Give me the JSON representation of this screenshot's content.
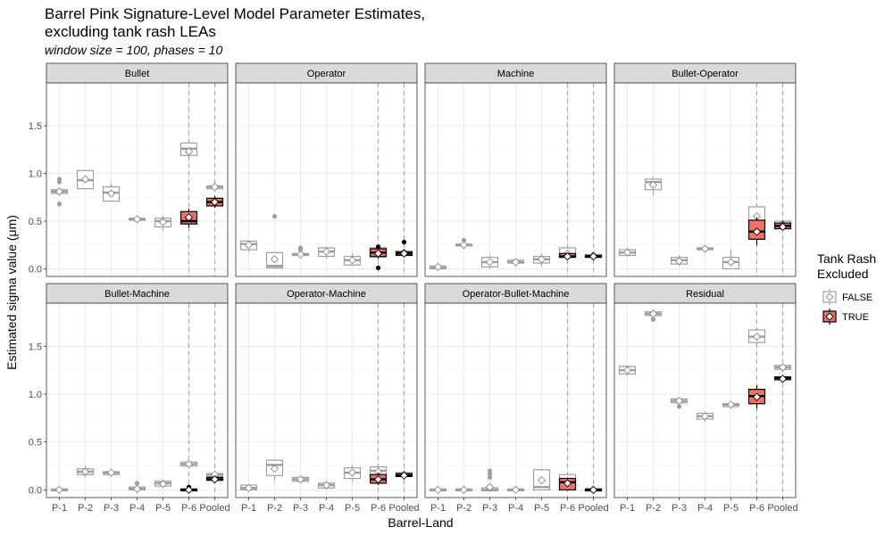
{
  "title_line1": "Barrel Pink Signature-Level Model Parameter Estimates,",
  "title_line2": "excluding tank rash LEAs",
  "subtitle": "window size = 100, phases = 10",
  "legend": {
    "title_line1": "Tank Rash",
    "title_line2": "Excluded",
    "false_label": "FALSE",
    "true_label": "TRUE"
  },
  "colors": {
    "false_box": "#9e9e9e",
    "false_fill": "#ffffff",
    "true_box": "#000000",
    "true_fill": "#f07068",
    "strip_bg": "#d9d9d9",
    "grid": "#ebebeb",
    "vline": "#aaaaaa"
  },
  "chart_data": {
    "type": "box",
    "xlabel": "Barrel-Land",
    "ylabel": "Estimated sigma value (μm)",
    "categories": [
      "P-1",
      "P-2",
      "P-3",
      "P-4",
      "P-5",
      "P-6",
      "Pooled"
    ],
    "ylim": [
      -0.08,
      1.95
    ],
    "yticks": [
      0.0,
      0.5,
      1.0,
      1.5
    ],
    "ytick_labels": [
      "0.0",
      "0.5",
      "1.0",
      "1.5"
    ],
    "dashed_x": [
      "P-6",
      "Pooled"
    ],
    "grid": true,
    "legend_position": "right",
    "panels": [
      {
        "name": "Bullet",
        "boxes": [
          {
            "x": "P-1",
            "excl": false,
            "q1": 0.79,
            "med": 0.81,
            "q3": 0.83,
            "lo": 0.77,
            "hi": 0.85,
            "mean": 0.81,
            "out": [
              0.68,
              0.91,
              0.94
            ]
          },
          {
            "x": "P-2",
            "excl": false,
            "q1": 0.84,
            "med": 0.93,
            "q3": 1.03,
            "lo": 0.84,
            "hi": 1.03,
            "mean": 0.94,
            "out": []
          },
          {
            "x": "P-3",
            "excl": false,
            "q1": 0.71,
            "med": 0.8,
            "q3": 0.86,
            "lo": 0.71,
            "hi": 0.89,
            "mean": 0.79,
            "out": []
          },
          {
            "x": "P-4",
            "excl": false,
            "q1": 0.51,
            "med": 0.52,
            "q3": 0.53,
            "lo": 0.51,
            "hi": 0.53,
            "mean": 0.52,
            "out": []
          },
          {
            "x": "P-5",
            "excl": false,
            "q1": 0.44,
            "med": 0.5,
            "q3": 0.53,
            "lo": 0.4,
            "hi": 0.56,
            "mean": 0.49,
            "out": []
          },
          {
            "x": "P-6",
            "excl": false,
            "q1": 1.19,
            "med": 1.26,
            "q3": 1.32,
            "lo": 1.14,
            "hi": 1.35,
            "mean": 1.23,
            "out": []
          },
          {
            "x": "P-6",
            "excl": true,
            "q1": 0.47,
            "med": 0.5,
            "q3": 0.6,
            "lo": 0.43,
            "hi": 0.63,
            "mean": 0.54,
            "out": []
          },
          {
            "x": "Pooled",
            "excl": false,
            "q1": 0.84,
            "med": 0.86,
            "q3": 0.87,
            "lo": 0.83,
            "hi": 0.88,
            "mean": 0.86,
            "out": []
          },
          {
            "x": "Pooled",
            "excl": true,
            "q1": 0.66,
            "med": 0.7,
            "q3": 0.74,
            "lo": 0.64,
            "hi": 0.76,
            "mean": 0.7,
            "out": []
          }
        ]
      },
      {
        "name": "Operator",
        "boxes": [
          {
            "x": "P-1",
            "excl": false,
            "q1": 0.2,
            "med": 0.26,
            "q3": 0.29,
            "lo": 0.18,
            "hi": 0.3,
            "mean": 0.25,
            "out": []
          },
          {
            "x": "P-2",
            "excl": false,
            "q1": 0.01,
            "med": 0.03,
            "q3": 0.17,
            "lo": 0.0,
            "hi": 0.17,
            "mean": 0.1,
            "out": [
              0.55
            ]
          },
          {
            "x": "P-3",
            "excl": false,
            "q1": 0.14,
            "med": 0.15,
            "q3": 0.16,
            "lo": 0.13,
            "hi": 0.17,
            "mean": 0.15,
            "out": [
              0.2,
              0.22
            ]
          },
          {
            "x": "P-4",
            "excl": false,
            "q1": 0.13,
            "med": 0.18,
            "q3": 0.22,
            "lo": 0.11,
            "hi": 0.23,
            "mean": 0.18,
            "out": []
          },
          {
            "x": "P-5",
            "excl": false,
            "q1": 0.04,
            "med": 0.09,
            "q3": 0.13,
            "lo": 0.03,
            "hi": 0.16,
            "mean": 0.09,
            "out": []
          },
          {
            "x": "P-6",
            "excl": false,
            "q1": 0.12,
            "med": 0.18,
            "q3": 0.22,
            "lo": 0.1,
            "hi": 0.24,
            "mean": 0.18,
            "out": []
          },
          {
            "x": "P-6",
            "excl": true,
            "q1": 0.13,
            "med": 0.17,
            "q3": 0.21,
            "lo": 0.11,
            "hi": 0.22,
            "mean": 0.16,
            "out": [
              0.01,
              0.23
            ]
          },
          {
            "x": "Pooled",
            "excl": false,
            "q1": 0.16,
            "med": 0.17,
            "q3": 0.18,
            "lo": 0.15,
            "hi": 0.19,
            "mean": 0.17,
            "out": []
          },
          {
            "x": "Pooled",
            "excl": true,
            "q1": 0.14,
            "med": 0.16,
            "q3": 0.18,
            "lo": 0.13,
            "hi": 0.19,
            "mean": 0.16,
            "out": [
              0.28
            ]
          }
        ]
      },
      {
        "name": "Machine",
        "boxes": [
          {
            "x": "P-1",
            "excl": false,
            "q1": 0.0,
            "med": 0.01,
            "q3": 0.03,
            "lo": 0.0,
            "hi": 0.04,
            "mean": 0.02,
            "out": []
          },
          {
            "x": "P-2",
            "excl": false,
            "q1": 0.24,
            "med": 0.25,
            "q3": 0.26,
            "lo": 0.23,
            "hi": 0.27,
            "mean": 0.25,
            "out": [
              0.3
            ]
          },
          {
            "x": "P-3",
            "excl": false,
            "q1": 0.02,
            "med": 0.07,
            "q3": 0.12,
            "lo": 0.0,
            "hi": 0.14,
            "mean": 0.07,
            "out": []
          },
          {
            "x": "P-4",
            "excl": false,
            "q1": 0.06,
            "med": 0.07,
            "q3": 0.09,
            "lo": 0.05,
            "hi": 0.1,
            "mean": 0.07,
            "out": []
          },
          {
            "x": "P-5",
            "excl": false,
            "q1": 0.06,
            "med": 0.1,
            "q3": 0.13,
            "lo": 0.03,
            "hi": 0.16,
            "mean": 0.1,
            "out": []
          },
          {
            "x": "P-6",
            "excl": false,
            "q1": 0.12,
            "med": 0.15,
            "q3": 0.22,
            "lo": 0.11,
            "hi": 0.24,
            "mean": 0.16,
            "out": []
          },
          {
            "x": "P-6",
            "excl": true,
            "q1": 0.12,
            "med": 0.13,
            "q3": 0.16,
            "lo": 0.11,
            "hi": 0.17,
            "mean": 0.13,
            "out": []
          },
          {
            "x": "Pooled",
            "excl": false,
            "q1": 0.13,
            "med": 0.14,
            "q3": 0.15,
            "lo": 0.12,
            "hi": 0.16,
            "mean": 0.14,
            "out": []
          },
          {
            "x": "Pooled",
            "excl": true,
            "q1": 0.12,
            "med": 0.13,
            "q3": 0.14,
            "lo": 0.12,
            "hi": 0.15,
            "mean": 0.13,
            "out": []
          }
        ]
      },
      {
        "name": "Bullet-Operator",
        "boxes": [
          {
            "x": "P-1",
            "excl": false,
            "q1": 0.14,
            "med": 0.17,
            "q3": 0.2,
            "lo": 0.13,
            "hi": 0.22,
            "mean": 0.17,
            "out": []
          },
          {
            "x": "P-2",
            "excl": false,
            "q1": 0.83,
            "med": 0.91,
            "q3": 0.94,
            "lo": 0.77,
            "hi": 0.97,
            "mean": 0.88,
            "out": []
          },
          {
            "x": "P-3",
            "excl": false,
            "q1": 0.05,
            "med": 0.09,
            "q3": 0.12,
            "lo": 0.03,
            "hi": 0.14,
            "mean": 0.08,
            "out": []
          },
          {
            "x": "P-4",
            "excl": false,
            "q1": 0.2,
            "med": 0.21,
            "q3": 0.22,
            "lo": 0.19,
            "hi": 0.23,
            "mean": 0.21,
            "out": []
          },
          {
            "x": "P-5",
            "excl": false,
            "q1": 0.0,
            "med": 0.07,
            "q3": 0.12,
            "lo": 0.0,
            "hi": 0.2,
            "mean": 0.07,
            "out": []
          },
          {
            "x": "P-6",
            "excl": false,
            "q1": 0.44,
            "med": 0.5,
            "q3": 0.65,
            "lo": 0.37,
            "hi": 0.68,
            "mean": 0.55,
            "out": []
          },
          {
            "x": "P-6",
            "excl": true,
            "q1": 0.31,
            "med": 0.39,
            "q3": 0.51,
            "lo": 0.25,
            "hi": 0.54,
            "mean": 0.39,
            "out": []
          },
          {
            "x": "Pooled",
            "excl": false,
            "q1": 0.44,
            "med": 0.47,
            "q3": 0.5,
            "lo": 0.42,
            "hi": 0.52,
            "mean": 0.47,
            "out": []
          },
          {
            "x": "Pooled",
            "excl": true,
            "q1": 0.42,
            "med": 0.45,
            "q3": 0.48,
            "lo": 0.41,
            "hi": 0.5,
            "mean": 0.44,
            "out": []
          }
        ]
      },
      {
        "name": "Bullet-Machine",
        "boxes": [
          {
            "x": "P-1",
            "excl": false,
            "q1": -0.01,
            "med": 0.0,
            "q3": 0.01,
            "lo": -0.01,
            "hi": 0.01,
            "mean": 0.0,
            "out": []
          },
          {
            "x": "P-2",
            "excl": false,
            "q1": 0.16,
            "med": 0.19,
            "q3": 0.22,
            "lo": 0.13,
            "hi": 0.25,
            "mean": 0.19,
            "out": []
          },
          {
            "x": "P-3",
            "excl": false,
            "q1": 0.16,
            "med": 0.18,
            "q3": 0.19,
            "lo": 0.15,
            "hi": 0.21,
            "mean": 0.18,
            "out": []
          },
          {
            "x": "P-4",
            "excl": false,
            "q1": 0.0,
            "med": 0.01,
            "q3": 0.03,
            "lo": 0.0,
            "hi": 0.04,
            "mean": 0.01,
            "out": [
              0.07
            ]
          },
          {
            "x": "P-5",
            "excl": false,
            "q1": 0.04,
            "med": 0.07,
            "q3": 0.09,
            "lo": 0.02,
            "hi": 0.11,
            "mean": 0.06,
            "out": []
          },
          {
            "x": "P-6",
            "excl": false,
            "q1": 0.25,
            "med": 0.27,
            "q3": 0.29,
            "lo": 0.24,
            "hi": 0.3,
            "mean": 0.27,
            "out": []
          },
          {
            "x": "P-6",
            "excl": true,
            "q1": -0.01,
            "med": 0.0,
            "q3": 0.01,
            "lo": -0.01,
            "hi": 0.01,
            "mean": 0.0,
            "out": [
              0.03
            ]
          },
          {
            "x": "Pooled",
            "excl": false,
            "q1": 0.14,
            "med": 0.16,
            "q3": 0.17,
            "lo": 0.13,
            "hi": 0.18,
            "mean": 0.16,
            "out": []
          },
          {
            "x": "Pooled",
            "excl": true,
            "q1": 0.1,
            "med": 0.11,
            "q3": 0.13,
            "lo": 0.09,
            "hi": 0.14,
            "mean": 0.11,
            "out": []
          }
        ]
      },
      {
        "name": "Operator-Machine",
        "boxes": [
          {
            "x": "P-1",
            "excl": false,
            "q1": 0.0,
            "med": 0.02,
            "q3": 0.05,
            "lo": 0.0,
            "hi": 0.06,
            "mean": 0.02,
            "out": []
          },
          {
            "x": "P-2",
            "excl": false,
            "q1": 0.15,
            "med": 0.26,
            "q3": 0.31,
            "lo": 0.1,
            "hi": 0.32,
            "mean": 0.22,
            "out": []
          },
          {
            "x": "P-3",
            "excl": false,
            "q1": 0.09,
            "med": 0.11,
            "q3": 0.13,
            "lo": 0.08,
            "hi": 0.14,
            "mean": 0.11,
            "out": []
          },
          {
            "x": "P-4",
            "excl": false,
            "q1": 0.02,
            "med": 0.05,
            "q3": 0.07,
            "lo": 0.01,
            "hi": 0.08,
            "mean": 0.05,
            "out": []
          },
          {
            "x": "P-5",
            "excl": false,
            "q1": 0.12,
            "med": 0.18,
            "q3": 0.23,
            "lo": 0.09,
            "hi": 0.26,
            "mean": 0.18,
            "out": []
          },
          {
            "x": "P-6",
            "excl": false,
            "q1": 0.14,
            "med": 0.2,
            "q3": 0.24,
            "lo": 0.12,
            "hi": 0.26,
            "mean": 0.19,
            "out": []
          },
          {
            "x": "P-6",
            "excl": true,
            "q1": 0.07,
            "med": 0.11,
            "q3": 0.16,
            "lo": 0.05,
            "hi": 0.18,
            "mean": 0.11,
            "out": []
          },
          {
            "x": "Pooled",
            "excl": false,
            "q1": 0.15,
            "med": 0.17,
            "q3": 0.18,
            "lo": 0.14,
            "hi": 0.19,
            "mean": 0.16,
            "out": []
          },
          {
            "x": "Pooled",
            "excl": true,
            "q1": 0.14,
            "med": 0.15,
            "q3": 0.17,
            "lo": 0.13,
            "hi": 0.18,
            "mean": 0.15,
            "out": []
          }
        ]
      },
      {
        "name": "Operator-Bullet-Machine",
        "boxes": [
          {
            "x": "P-1",
            "excl": false,
            "q1": -0.01,
            "med": 0.0,
            "q3": 0.01,
            "lo": -0.01,
            "hi": 0.01,
            "mean": 0.0,
            "out": []
          },
          {
            "x": "P-2",
            "excl": false,
            "q1": -0.01,
            "med": 0.0,
            "q3": 0.01,
            "lo": -0.01,
            "hi": 0.01,
            "mean": 0.0,
            "out": []
          },
          {
            "x": "P-3",
            "excl": false,
            "q1": -0.01,
            "med": 0.0,
            "q3": 0.02,
            "lo": -0.01,
            "hi": 0.05,
            "mean": 0.03,
            "out": [
              0.13,
              0.17,
              0.2
            ]
          },
          {
            "x": "P-4",
            "excl": false,
            "q1": -0.01,
            "med": 0.0,
            "q3": 0.01,
            "lo": -0.01,
            "hi": 0.01,
            "mean": 0.0,
            "out": []
          },
          {
            "x": "P-5",
            "excl": false,
            "q1": 0.0,
            "med": 0.03,
            "q3": 0.21,
            "lo": 0.0,
            "hi": 0.22,
            "mean": 0.1,
            "out": []
          },
          {
            "x": "P-6",
            "excl": false,
            "q1": 0.0,
            "med": 0.11,
            "q3": 0.16,
            "lo": 0.0,
            "hi": 0.17,
            "mean": 0.08,
            "out": []
          },
          {
            "x": "P-6",
            "excl": true,
            "q1": 0.0,
            "med": 0.08,
            "q3": 0.12,
            "lo": 0.0,
            "hi": 0.13,
            "mean": 0.07,
            "out": []
          },
          {
            "x": "Pooled",
            "excl": false,
            "q1": -0.01,
            "med": 0.0,
            "q3": 0.01,
            "lo": -0.01,
            "hi": 0.01,
            "mean": 0.0,
            "out": []
          },
          {
            "x": "Pooled",
            "excl": true,
            "q1": -0.01,
            "med": 0.0,
            "q3": 0.01,
            "lo": -0.01,
            "hi": 0.01,
            "mean": 0.0,
            "out": []
          }
        ]
      },
      {
        "name": "Residual",
        "boxes": [
          {
            "x": "P-1",
            "excl": false,
            "q1": 1.21,
            "med": 1.25,
            "q3": 1.29,
            "lo": 1.19,
            "hi": 1.3,
            "mean": 1.25,
            "out": []
          },
          {
            "x": "P-2",
            "excl": false,
            "q1": 1.82,
            "med": 1.84,
            "q3": 1.86,
            "lo": 1.8,
            "hi": 1.87,
            "mean": 1.84,
            "out": [
              1.78
            ]
          },
          {
            "x": "P-3",
            "excl": false,
            "q1": 0.91,
            "med": 0.93,
            "q3": 0.95,
            "lo": 0.88,
            "hi": 0.96,
            "mean": 0.93,
            "out": [
              0.87
            ]
          },
          {
            "x": "P-4",
            "excl": false,
            "q1": 0.74,
            "med": 0.77,
            "q3": 0.8,
            "lo": 0.71,
            "hi": 0.82,
            "mean": 0.77,
            "out": []
          },
          {
            "x": "P-5",
            "excl": false,
            "q1": 0.87,
            "med": 0.89,
            "q3": 0.9,
            "lo": 0.86,
            "hi": 0.91,
            "mean": 0.89,
            "out": []
          },
          {
            "x": "P-6",
            "excl": false,
            "q1": 1.54,
            "med": 1.6,
            "q3": 1.67,
            "lo": 1.51,
            "hi": 1.69,
            "mean": 1.6,
            "out": []
          },
          {
            "x": "P-6",
            "excl": true,
            "q1": 0.9,
            "med": 0.98,
            "q3": 1.05,
            "lo": 0.85,
            "hi": 1.09,
            "mean": 0.97,
            "out": []
          },
          {
            "x": "Pooled",
            "excl": false,
            "q1": 1.26,
            "med": 1.28,
            "q3": 1.3,
            "lo": 1.25,
            "hi": 1.31,
            "mean": 1.28,
            "out": []
          },
          {
            "x": "Pooled",
            "excl": true,
            "q1": 1.15,
            "med": 1.17,
            "q3": 1.18,
            "lo": 1.14,
            "hi": 1.19,
            "mean": 1.16,
            "out": []
          }
        ]
      }
    ]
  }
}
